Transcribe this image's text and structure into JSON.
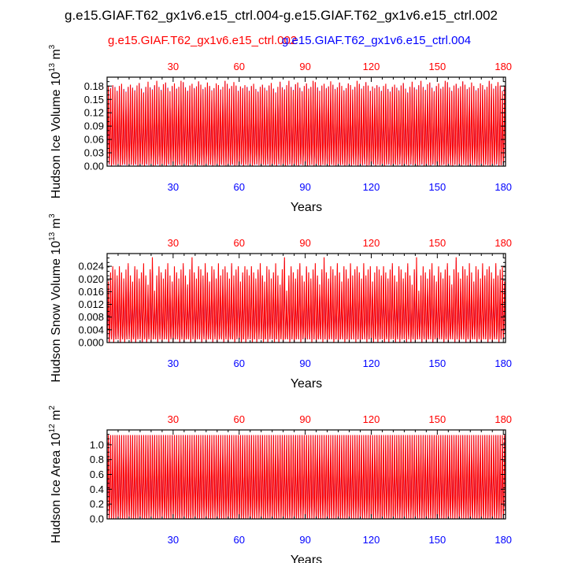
{
  "page_title": "g.e15.GIAF.T62_gx1v6.e15_ctrl.004-g.e15.GIAF.T62_gx1v6.e15_ctrl.002",
  "legend": {
    "red_label": "g.e15.GIAF.T62_gx1v6.e15_ctrl.002",
    "blue_label": "g.e15.GIAF.T62_gx1v6.e15_ctrl.004"
  },
  "colors": {
    "series_red": "#ff0000",
    "series_blue": "#0000ff",
    "axis": "#000000"
  },
  "chart_data": [
    {
      "type": "line",
      "ylabel": "Hudson Ice Volume",
      "yunit": "10^13 m^3",
      "xlabel": "Years",
      "xlim": [
        0,
        181
      ],
      "ylim": [
        0,
        0.2
      ],
      "xticks": [
        30,
        60,
        90,
        120,
        150,
        180
      ],
      "yticks": [
        "0.00",
        "0.03",
        "0.06",
        "0.09",
        "0.12",
        "0.15",
        "0.18"
      ],
      "seasonal_cycle": {
        "min": 0.0,
        "max": 0.2
      },
      "series": [
        {
          "name": "g.e15.GIAF.T62_gx1v6.e15_ctrl.002",
          "color": "#ff0000",
          "annual_max": [
            0.187,
            0.182,
            0.19,
            0.185,
            0.176,
            0.188,
            0.193,
            0.18,
            0.174,
            0.186,
            0.191,
            0.183,
            0.177,
            0.189,
            0.195,
            0.181,
            0.172,
            0.186,
            0.198,
            0.184,
            0.179,
            0.19,
            0.2,
            0.185,
            0.178,
            0.192,
            0.196,
            0.183,
            0.175,
            0.188,
            0.194,
            0.181,
            0.186,
            0.2,
            0.197,
            0.184,
            0.176,
            0.189,
            0.193,
            0.182,
            0.187,
            0.199,
            0.191,
            0.18,
            0.185,
            0.196,
            0.188,
            0.177,
            0.183,
            0.194,
            0.19,
            0.179,
            0.186,
            0.2,
            0.193,
            0.181,
            0.188,
            0.197,
            0.189,
            0.176
          ],
          "annual_min": [
            0.002,
            0.004,
            0.001,
            0.003,
            0.002,
            0.005,
            0.001,
            0.003,
            0.004,
            0.002,
            0.001,
            0.003,
            0.002,
            0.004,
            0.001,
            0.002,
            0.003,
            0.001,
            0.004,
            0.002,
            0.003,
            0.001,
            0.002,
            0.004,
            0.001,
            0.003,
            0.002,
            0.001,
            0.004,
            0.002,
            0.003,
            0.001,
            0.002,
            0.003,
            0.001,
            0.004,
            0.002,
            0.001,
            0.003,
            0.002,
            0.004,
            0.001,
            0.003,
            0.002,
            0.001,
            0.004,
            0.002,
            0.003,
            0.001,
            0.002,
            0.004,
            0.001,
            0.003,
            0.002,
            0.001,
            0.003,
            0.002,
            0.004,
            0.001,
            0.002
          ]
        },
        {
          "name": "g.e15.GIAF.T62_gx1v6.e15_ctrl.004",
          "color": "#0000ff",
          "annual_max": [
            0.186,
            0.183,
            0.189,
            0.186,
            0.177,
            0.187,
            0.192,
            0.181,
            0.175,
            0.185,
            0.19,
            0.184,
            0.178,
            0.188,
            0.194,
            0.182,
            0.173,
            0.185,
            0.197,
            0.185,
            0.18,
            0.189,
            0.199,
            0.186,
            0.179,
            0.191,
            0.195,
            0.184,
            0.176,
            0.187,
            0.193,
            0.182,
            0.185,
            0.199,
            0.196,
            0.185,
            0.177,
            0.188,
            0.192,
            0.183,
            0.186,
            0.198,
            0.19,
            0.181,
            0.184,
            0.195,
            0.187,
            0.178,
            0.182,
            0.193,
            0.189,
            0.18,
            0.185,
            0.199,
            0.192,
            0.182,
            0.187,
            0.196,
            0.188,
            0.177
          ],
          "annual_min": [
            0.002,
            0.003,
            0.001,
            0.003,
            0.002,
            0.004,
            0.001,
            0.003,
            0.003,
            0.002,
            0.001,
            0.003,
            0.002,
            0.003,
            0.001,
            0.002,
            0.003,
            0.001,
            0.003,
            0.002,
            0.003,
            0.001,
            0.002,
            0.003,
            0.001,
            0.003,
            0.002,
            0.001,
            0.003,
            0.002,
            0.003,
            0.001,
            0.002,
            0.003,
            0.001,
            0.003,
            0.002,
            0.001,
            0.003,
            0.002,
            0.003,
            0.001,
            0.003,
            0.002,
            0.001,
            0.003,
            0.002,
            0.003,
            0.001,
            0.002,
            0.003,
            0.001,
            0.003,
            0.002,
            0.001,
            0.003,
            0.002,
            0.003,
            0.001,
            0.002
          ]
        }
      ]
    },
    {
      "type": "line",
      "ylabel": "Hudson Snow Volume",
      "yunit": "10^13 m^3",
      "xlabel": "Years",
      "xlim": [
        0,
        181
      ],
      "ylim": [
        0,
        0.028
      ],
      "xticks": [
        30,
        60,
        90,
        120,
        150,
        180
      ],
      "yticks": [
        "0.000",
        "0.004",
        "0.008",
        "0.012",
        "0.016",
        "0.020",
        "0.024"
      ],
      "seasonal_cycle": {
        "min": 0.0,
        "max": 0.028
      },
      "series": [
        {
          "name": "g.e15.GIAF.T62_gx1v6.e15_ctrl.002",
          "color": "#ff0000",
          "annual_max": [
            0.02,
            0.023,
            0.025,
            0.024,
            0.022,
            0.025,
            0.023,
            0.021,
            0.024,
            0.026,
            0.022,
            0.02,
            0.025,
            0.024,
            0.021,
            0.023,
            0.026,
            0.022,
            0.019,
            0.024,
            0.028,
            0.017,
            0.022,
            0.025,
            0.023,
            0.021,
            0.024,
            0.026,
            0.022,
            0.02,
            0.025,
            0.023,
            0.021,
            0.024,
            0.026,
            0.022,
            0.019,
            0.024,
            0.028,
            0.023,
            0.021,
            0.025,
            0.024,
            0.022,
            0.026,
            0.023,
            0.02,
            0.025,
            0.024,
            0.021,
            0.026,
            0.022,
            0.024,
            0.025,
            0.023,
            0.021,
            0.026,
            0.022,
            0.024,
            0.025
          ],
          "annual_min": [
            0.001,
            0.0,
            0.001,
            0.0,
            0.001,
            0.001,
            0.0,
            0.001,
            0.0,
            0.001,
            0.001,
            0.0,
            0.001,
            0.0,
            0.001,
            0.001,
            0.0,
            0.001,
            0.0,
            0.001,
            0.0,
            0.001,
            0.001,
            0.0,
            0.001,
            0.0,
            0.001,
            0.001,
            0.0,
            0.001,
            0.0,
            0.001,
            0.001,
            0.0,
            0.001,
            0.0,
            0.001,
            0.001,
            0.0,
            0.001,
            0.0,
            0.001,
            0.001,
            0.0,
            0.001,
            0.0,
            0.001,
            0.001,
            0.0,
            0.001,
            0.0,
            0.001,
            0.001,
            0.0,
            0.001,
            0.0,
            0.001,
            0.001,
            0.0,
            0.001
          ]
        },
        {
          "name": "g.e15.GIAF.T62_gx1v6.e15_ctrl.004",
          "color": "#0000ff",
          "annual_max": [
            0.019,
            0.022,
            0.024,
            0.023,
            0.021,
            0.024,
            0.022,
            0.02,
            0.023,
            0.025,
            0.021,
            0.019,
            0.024,
            0.023,
            0.02,
            0.022,
            0.025,
            0.021,
            0.018,
            0.023,
            0.027,
            0.016,
            0.021,
            0.024,
            0.022,
            0.02,
            0.023,
            0.025,
            0.021,
            0.019,
            0.024,
            0.022,
            0.02,
            0.023,
            0.025,
            0.021,
            0.018,
            0.023,
            0.027,
            0.022,
            0.02,
            0.024,
            0.023,
            0.021,
            0.025,
            0.022,
            0.019,
            0.024,
            0.023,
            0.02,
            0.025,
            0.021,
            0.023,
            0.024,
            0.022,
            0.02,
            0.025,
            0.021,
            0.023,
            0.024
          ],
          "annual_min": [
            0.001,
            0.0,
            0.001,
            0.0,
            0.001,
            0.001,
            0.0,
            0.001,
            0.0,
            0.001,
            0.001,
            0.0,
            0.001,
            0.0,
            0.001,
            0.001,
            0.0,
            0.001,
            0.0,
            0.001,
            0.0,
            0.001,
            0.001,
            0.0,
            0.001,
            0.0,
            0.001,
            0.001,
            0.0,
            0.001,
            0.0,
            0.001,
            0.001,
            0.0,
            0.001,
            0.0,
            0.001,
            0.001,
            0.0,
            0.001,
            0.0,
            0.001,
            0.001,
            0.0,
            0.001,
            0.0,
            0.001,
            0.001,
            0.0,
            0.001,
            0.0,
            0.001,
            0.001,
            0.0,
            0.001,
            0.0,
            0.001,
            0.001,
            0.0,
            0.001
          ]
        }
      ]
    },
    {
      "type": "line",
      "ylabel": "Hudson Ice Area",
      "yunit": "10^12 m^2",
      "xlabel": "Years",
      "xlim": [
        0,
        181
      ],
      "ylim": [
        0,
        1.2
      ],
      "xticks": [
        30,
        60,
        90,
        120,
        150,
        180
      ],
      "yticks": [
        "0.0",
        "0.2",
        "0.4",
        "0.6",
        "0.8",
        "1.0"
      ],
      "seasonal_cycle": {
        "min": 0.0,
        "max": 1.18
      },
      "series": [
        {
          "name": "g.e15.GIAF.T62_gx1v6.e15_ctrl.002",
          "color": "#ff0000",
          "annual_max": [
            1.18,
            1.18,
            1.18,
            1.18,
            1.18,
            1.18,
            1.18,
            1.18,
            1.18,
            1.18,
            1.18,
            1.18,
            1.18,
            1.18,
            1.18,
            1.18,
            1.18,
            1.18,
            1.18,
            1.18,
            1.18,
            1.18,
            1.18,
            1.18,
            1.18,
            1.18,
            1.18,
            1.18,
            1.18,
            1.18,
            1.18,
            1.18,
            1.18,
            1.18,
            1.18,
            1.18,
            1.18,
            1.18,
            1.18,
            1.18,
            1.18,
            1.18,
            1.18,
            1.18,
            1.18,
            1.18,
            1.18,
            1.18,
            1.18,
            1.18,
            1.18,
            1.18,
            1.18,
            1.18,
            1.18,
            1.18,
            1.18,
            1.18,
            1.18,
            1.18
          ],
          "annual_min": [
            0.0,
            0.0,
            0.0,
            0.0,
            0.0,
            0.0,
            0.0,
            0.0,
            0.0,
            0.0,
            0.0,
            0.0,
            0.0,
            0.0,
            0.0,
            0.0,
            0.0,
            0.0,
            0.0,
            0.0,
            0.0,
            0.0,
            0.0,
            0.0,
            0.0,
            0.0,
            0.0,
            0.0,
            0.0,
            0.0,
            0.0,
            0.0,
            0.0,
            0.0,
            0.0,
            0.0,
            0.0,
            0.0,
            0.0,
            0.0,
            0.0,
            0.0,
            0.0,
            0.0,
            0.0,
            0.0,
            0.0,
            0.0,
            0.0,
            0.0,
            0.0,
            0.0,
            0.0,
            0.0,
            0.0,
            0.0,
            0.0,
            0.0,
            0.0,
            0.0
          ]
        },
        {
          "name": "g.e15.GIAF.T62_gx1v6.e15_ctrl.004",
          "color": "#0000ff",
          "annual_max": [
            1.18,
            1.18,
            1.18,
            1.18,
            1.18,
            1.18,
            1.18,
            1.18,
            1.18,
            1.18,
            1.18,
            1.18,
            1.18,
            1.18,
            1.18,
            1.18,
            1.18,
            1.18,
            1.18,
            1.18,
            1.18,
            1.18,
            1.18,
            1.18,
            1.18,
            1.18,
            1.18,
            1.18,
            1.18,
            1.18,
            1.18,
            1.18,
            1.18,
            1.18,
            1.18,
            1.18,
            1.18,
            1.18,
            1.18,
            1.18,
            1.18,
            1.18,
            1.18,
            1.18,
            1.18,
            1.18,
            1.18,
            1.18,
            1.18,
            1.18,
            1.18,
            1.18,
            1.18,
            1.18,
            1.18,
            1.18,
            1.18,
            1.18,
            1.18,
            1.18
          ],
          "annual_min": [
            0.0,
            0.0,
            0.0,
            0.0,
            0.0,
            0.0,
            0.0,
            0.0,
            0.0,
            0.0,
            0.0,
            0.0,
            0.0,
            0.0,
            0.0,
            0.0,
            0.0,
            0.0,
            0.0,
            0.0,
            0.0,
            0.0,
            0.0,
            0.0,
            0.0,
            0.0,
            0.0,
            0.0,
            0.0,
            0.0,
            0.0,
            0.0,
            0.0,
            0.0,
            0.0,
            0.0,
            0.0,
            0.0,
            0.0,
            0.0,
            0.0,
            0.0,
            0.0,
            0.0,
            0.0,
            0.0,
            0.0,
            0.0,
            0.0,
            0.0,
            0.0,
            0.0,
            0.0,
            0.0,
            0.0,
            0.0,
            0.0,
            0.0,
            0.0,
            0.0
          ]
        }
      ]
    }
  ]
}
